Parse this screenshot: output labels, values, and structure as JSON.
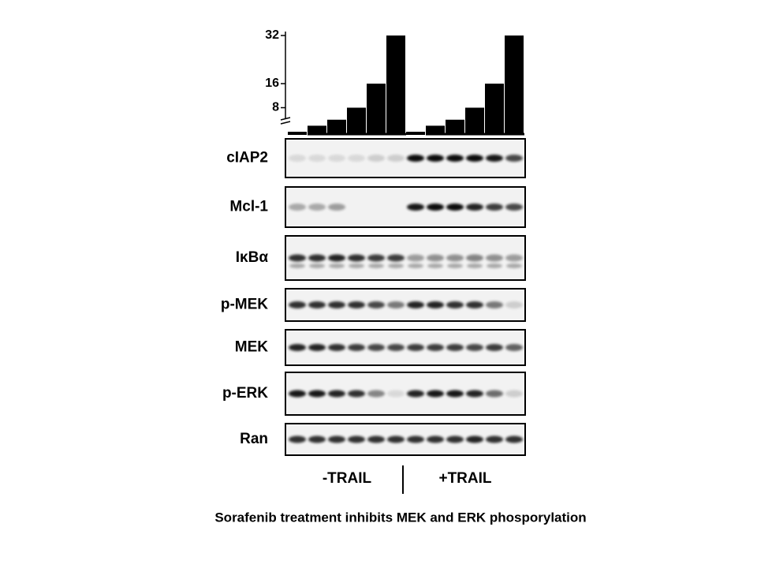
{
  "dose": {
    "ylim": [
      0,
      32
    ],
    "yticks": [
      8,
      16,
      32
    ],
    "groups": [
      {
        "label": "-TRAIL",
        "values": [
          0,
          2,
          4,
          8,
          16,
          32
        ]
      },
      {
        "label": "+TRAIL",
        "values": [
          0,
          2,
          4,
          8,
          16,
          32
        ]
      }
    ]
  },
  "blots": [
    "cIAP2",
    "Mcl-1",
    "IκBα",
    "p-MEK",
    "MEK",
    "p-ERK",
    "Ran"
  ],
  "caption": "Sorafenib treatment inhibits MEK and ERK phosporylation"
}
